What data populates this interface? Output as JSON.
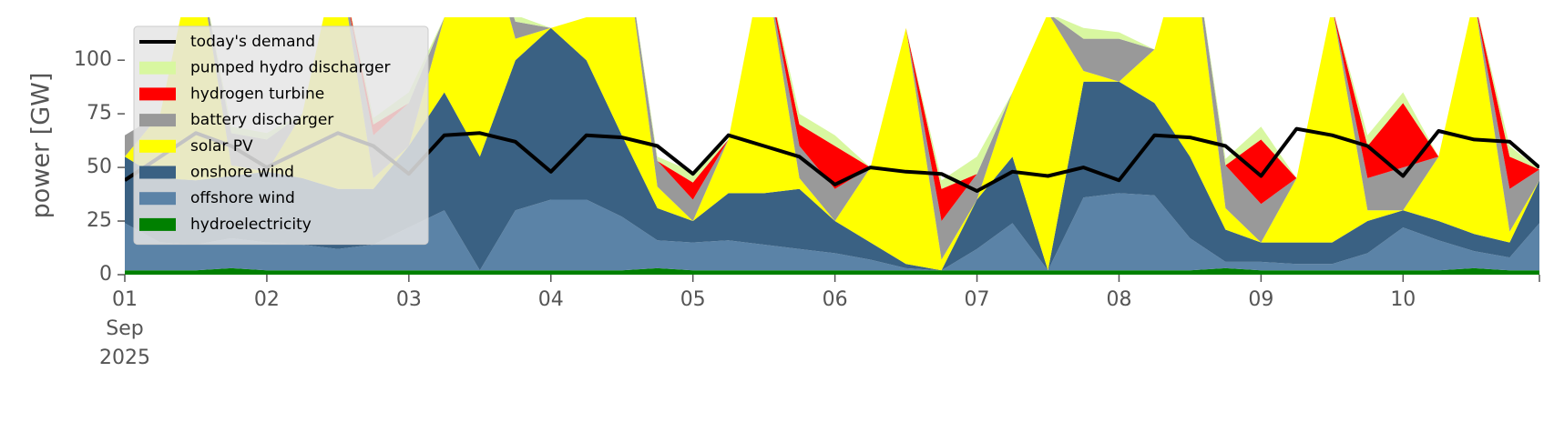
{
  "chart_data": {
    "type": "area",
    "ylabel": "power [GW]",
    "xlim": [
      1,
      10.96
    ],
    "ylim": [
      0,
      120
    ],
    "xticks": [
      {
        "value": 1,
        "label": "01\nSep\n2025"
      },
      {
        "value": 2,
        "label": "02"
      },
      {
        "value": 3,
        "label": "03"
      },
      {
        "value": 4,
        "label": "04"
      },
      {
        "value": 5,
        "label": "05"
      },
      {
        "value": 6,
        "label": "06"
      },
      {
        "value": 7,
        "label": "07"
      },
      {
        "value": 8,
        "label": "08"
      },
      {
        "value": 9,
        "label": "09"
      },
      {
        "value": 10,
        "label": "10"
      }
    ],
    "yticks": [
      0,
      25,
      50,
      75,
      100
    ],
    "grid": false,
    "legend": "upper left",
    "x": [
      1,
      1.25,
      1.5,
      1.75,
      2,
      2.25,
      2.5,
      2.75,
      3,
      3.25,
      3.5,
      3.75,
      4,
      4.25,
      4.5,
      4.75,
      5,
      5.25,
      5.5,
      5.75,
      6,
      6.25,
      6.5,
      6.75,
      7,
      7.25,
      7.5,
      7.75,
      8,
      8.25,
      8.5,
      8.75,
      9,
      9.25,
      9.5,
      9.75,
      10,
      10.25,
      10.5,
      10.75,
      10.96
    ],
    "series": [
      {
        "name": "hydroelectricity",
        "color": "#008000",
        "values": [
          2,
          2,
          2,
          3,
          2,
          2,
          2,
          2,
          2,
          2,
          2,
          2,
          2,
          2,
          2,
          3,
          2,
          2,
          2,
          2,
          2,
          2,
          2,
          2,
          2,
          2,
          2,
          2,
          2,
          2,
          2,
          3,
          2,
          2,
          2,
          2,
          2,
          2,
          3,
          2,
          2
        ]
      },
      {
        "name": "offshore wind",
        "color": "#5b83a7",
        "values": [
          22,
          13,
          12,
          14,
          13,
          12,
          10,
          12,
          20,
          28,
          0,
          28,
          33,
          33,
          25,
          13,
          13,
          14,
          12,
          10,
          8,
          5,
          1,
          0,
          10,
          22,
          0,
          34,
          36,
          35,
          15,
          3,
          4,
          3,
          3,
          8,
          20,
          14,
          8,
          6,
          22
        ]
      },
      {
        "name": "onshore wind",
        "color": "#3a6183",
        "values": [
          31,
          30,
          30,
          29,
          33,
          31,
          28,
          26,
          38,
          55,
          53,
          70,
          80,
          65,
          38,
          15,
          10,
          22,
          24,
          28,
          15,
          8,
          2,
          0,
          23,
          31,
          0,
          54,
          52,
          43,
          38,
          15,
          9,
          10,
          10,
          15,
          8,
          9,
          8,
          7,
          20
        ]
      },
      {
        "name": "solar PV",
        "color": "#ffff00",
        "values": [
          0,
          30,
          110,
          5,
          0,
          30,
          110,
          5,
          0,
          35,
          115,
          10,
          0,
          20,
          100,
          10,
          0,
          25,
          110,
          5,
          0,
          35,
          110,
          5,
          0,
          30,
          120,
          5,
          0,
          25,
          110,
          10,
          0,
          30,
          110,
          5,
          0,
          30,
          110,
          5,
          0
        ]
      },
      {
        "name": "battery discharger",
        "color": "#999999",
        "values": [
          10,
          0,
          0,
          15,
          15,
          0,
          0,
          20,
          20,
          0,
          0,
          8,
          0,
          0,
          0,
          12,
          10,
          0,
          0,
          15,
          15,
          0,
          0,
          18,
          12,
          0,
          0,
          15,
          20,
          0,
          0,
          20,
          18,
          0,
          0,
          15,
          20,
          0,
          0,
          20,
          5
        ]
      },
      {
        "name": "hydrogen turbine",
        "color": "#ff0000",
        "values": [
          0,
          0,
          0,
          0,
          0,
          0,
          0,
          5,
          0,
          0,
          0,
          0,
          0,
          0,
          0,
          0,
          8,
          0,
          0,
          10,
          20,
          0,
          0,
          15,
          0,
          0,
          0,
          0,
          0,
          0,
          0,
          0,
          30,
          0,
          0,
          15,
          30,
          0,
          0,
          15,
          0
        ]
      },
      {
        "name": "pumped hydro discharger",
        "color": "#d8f7a0",
        "values": [
          0,
          0,
          0,
          3,
          3,
          0,
          0,
          3,
          5,
          0,
          0,
          3,
          0,
          0,
          0,
          2,
          5,
          0,
          0,
          5,
          5,
          0,
          0,
          4,
          8,
          0,
          0,
          5,
          3,
          0,
          0,
          3,
          6,
          0,
          0,
          5,
          5,
          0,
          0,
          5,
          0
        ]
      }
    ],
    "lines": [
      {
        "name": "today's demand",
        "color": "#000000",
        "values": [
          44,
          55,
          66,
          60,
          50,
          58,
          66,
          60,
          47,
          65,
          66,
          62,
          48,
          65,
          64,
          60,
          47,
          65,
          60,
          55,
          42,
          50,
          48,
          47,
          39,
          48,
          46,
          50,
          44,
          65,
          64,
          60,
          46,
          68,
          65,
          60,
          46,
          67,
          63,
          62,
          50
        ]
      }
    ]
  }
}
